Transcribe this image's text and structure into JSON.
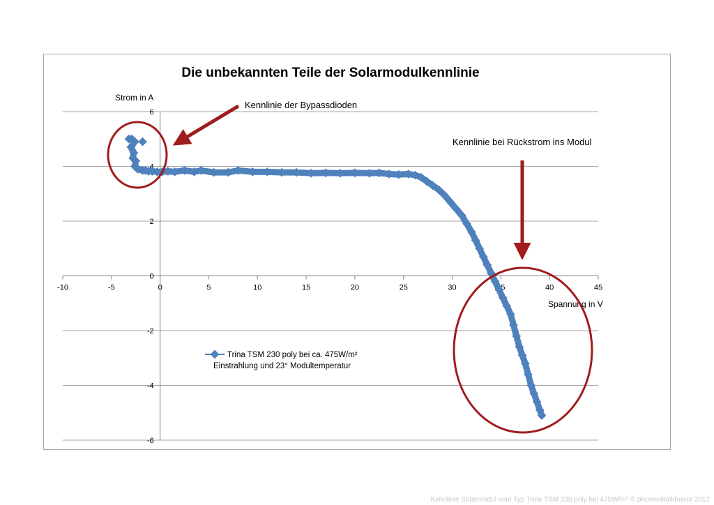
{
  "chart_data": {
    "type": "scatter",
    "title": "Die unbekannten Teile der Solarmodulkennlinie",
    "ylabel": "Strom in A",
    "xlabel": "Spannung  in V",
    "xlim": [
      -10,
      45
    ],
    "ylim": [
      -6,
      6
    ],
    "x_ticks": [
      -10,
      -5,
      0,
      5,
      10,
      15,
      20,
      25,
      30,
      35,
      40,
      45
    ],
    "y_ticks": [
      -6,
      -4,
      -2,
      0,
      2,
      4,
      6
    ],
    "x_tick_labels": [
      "-10",
      "-5",
      "0",
      "5",
      "10",
      "15",
      "20",
      "25",
      "30",
      "35",
      "40",
      "45"
    ],
    "y_tick_labels": [
      "-6",
      "-4",
      "-2",
      "0",
      "2",
      "4",
      "6"
    ],
    "grid": "horizontal",
    "legend_placement": "inside-left",
    "series": [
      {
        "name": "Trina TSM 230 poly bei ca. 475W/m² Einstrahlung und 23° Modultemperatur",
        "color": "#4f81bd",
        "x": [
          -3.2,
          -2.9,
          -2.6,
          -3.0,
          -2.7,
          -2.8,
          -2.5,
          -2.6,
          -2.4,
          -2.3,
          -1.8,
          -1.5,
          -1.2,
          -0.8,
          -0.3,
          0.2,
          0.8,
          1.5,
          2.5,
          3.5,
          4.2,
          5.5,
          7.0,
          8.0,
          9.5,
          11.0,
          12.5,
          14.0,
          15.5,
          17.0,
          18.5,
          20.0,
          21.5,
          22.5,
          23.5,
          24.5,
          25.5,
          26.2,
          26.8,
          27.4,
          28.0,
          28.6,
          29.2,
          29.8,
          30.4,
          31.0,
          31.5,
          32.0,
          32.4,
          32.8,
          33.2,
          33.6,
          34.0,
          34.4,
          34.8,
          35.2,
          35.6,
          36.0,
          36.3,
          36.6,
          36.9,
          37.2,
          37.5,
          37.8,
          38.1,
          38.4,
          38.7,
          39.0,
          39.2,
          -1.8,
          37.2
        ],
        "y": [
          5.0,
          5.0,
          4.9,
          4.7,
          4.5,
          4.3,
          4.2,
          4.0,
          3.95,
          3.9,
          3.85,
          3.85,
          3.82,
          3.82,
          3.8,
          3.8,
          3.82,
          3.8,
          3.85,
          3.8,
          3.85,
          3.78,
          3.78,
          3.85,
          3.8,
          3.8,
          3.78,
          3.78,
          3.75,
          3.76,
          3.75,
          3.76,
          3.75,
          3.76,
          3.72,
          3.7,
          3.72,
          3.68,
          3.6,
          3.45,
          3.3,
          3.15,
          2.95,
          2.7,
          2.45,
          2.2,
          1.9,
          1.6,
          1.3,
          1.0,
          0.7,
          0.4,
          0.1,
          -0.2,
          -0.5,
          -0.8,
          -1.1,
          -1.4,
          -1.8,
          -2.2,
          -2.6,
          -2.9,
          -3.2,
          -3.6,
          -4.0,
          -4.3,
          -4.6,
          -4.9,
          -5.1,
          4.9,
          -2.9
        ]
      }
    ],
    "annotations": [
      {
        "text": "Kennlinie der Bypassdioden"
      },
      {
        "text": "Kennlinie bei Rückstrom ins Modul"
      }
    ]
  },
  "footer": "Kennlinie Solarmodul vom Typ Trina TSM 230 poly bei 475W/m² © photovoltaikbuero 2012",
  "colors": {
    "series": "#4f81bd",
    "annotation": "#a01c1c",
    "grid": "#a6a6a6"
  }
}
